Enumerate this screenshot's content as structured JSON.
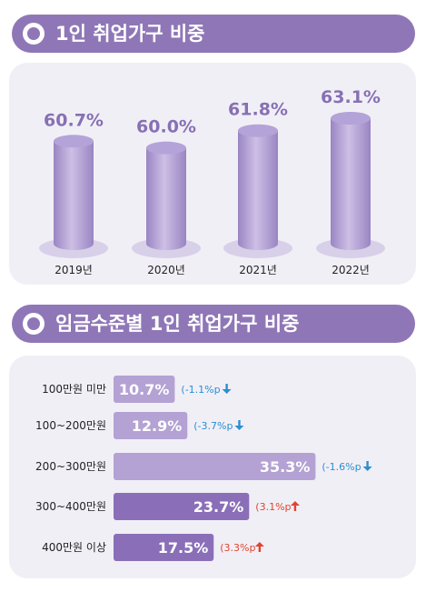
{
  "section1": {
    "title": "1인 취업가구 비중"
  },
  "section2": {
    "title": "임금수준별 1인 취업가구 비중"
  },
  "chart_data": [
    {
      "type": "bar",
      "categories": [
        "2019년",
        "2020년",
        "2021년",
        "2022년"
      ],
      "values": [
        60.7,
        60.0,
        61.8,
        63.1
      ],
      "data_labels": [
        "60.7%",
        "60.0%",
        "61.8%",
        "63.1%"
      ],
      "grid": false
    },
    {
      "type": "bar",
      "orientation": "horizontal",
      "categories": [
        "100만원 미만",
        "100~200만원",
        "200~300만원",
        "300~400만원",
        "400만원 이상"
      ],
      "values": [
        10.7,
        12.9,
        35.3,
        23.7,
        17.5
      ],
      "data_labels": [
        "10.7%",
        "12.9%",
        "35.3%",
        "23.7%",
        "17.5%"
      ],
      "changes": [
        "(-1.1%p",
        "(-3.7%p",
        "(-1.6%p",
        "(3.1%p",
        "(3.3%p"
      ],
      "change_direction": [
        "down",
        "down",
        "down",
        "up",
        "up"
      ],
      "grid": false
    }
  ],
  "colors": {
    "header": "#8f77b7",
    "panel": "#f1eff6",
    "cylinder_light": "#cdbfe5",
    "cylinder_dark": "#9a85c3",
    "cylinder_top": "#b4a3d8",
    "value_text": "#8770b4",
    "bar_light": "#b3a2d3",
    "bar_dark": "#8a6fb8",
    "down": "#2a8fd0",
    "up": "#e0452f"
  }
}
